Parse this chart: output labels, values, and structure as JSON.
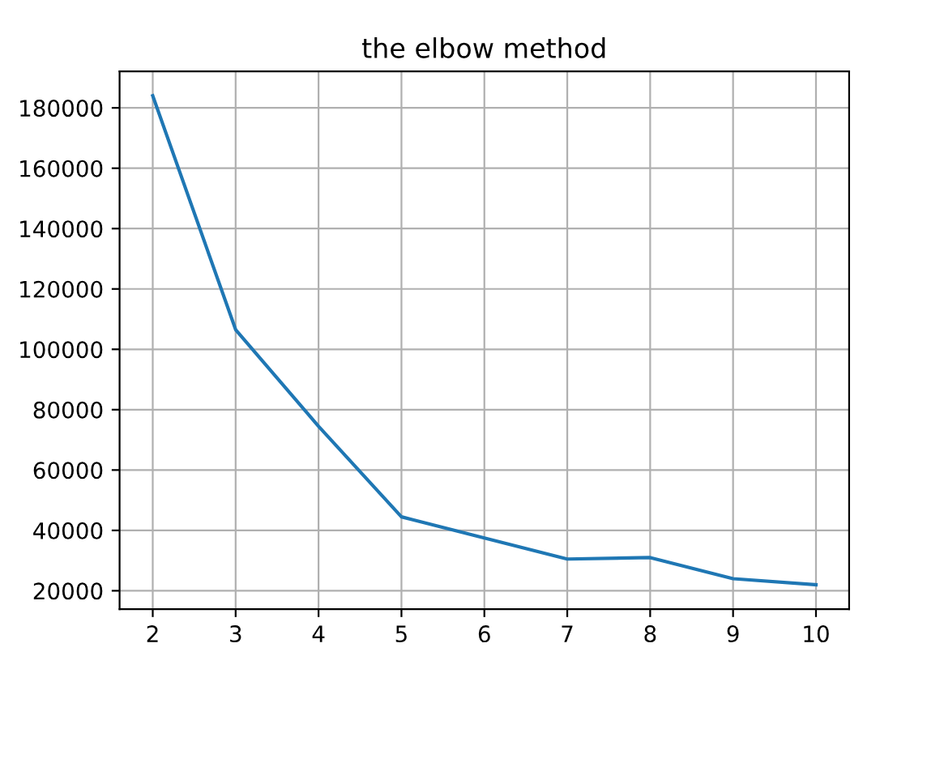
{
  "chart_data": {
    "type": "line",
    "title": "the elbow method",
    "x": [
      2,
      3,
      4,
      5,
      6,
      7,
      8,
      9,
      10
    ],
    "series": [
      {
        "color": "#1f77b4",
        "values": [
          184000,
          106500,
          74500,
          44500,
          37500,
          30500,
          31000,
          24000,
          22000
        ]
      }
    ],
    "xlim": [
      1.6,
      10.4
    ],
    "xticks": [
      2,
      3,
      4,
      5,
      6,
      7,
      8,
      9,
      10
    ],
    "ylim": [
      13900,
      192100
    ],
    "yticks": [
      20000,
      40000,
      60000,
      80000,
      100000,
      120000,
      140000,
      160000,
      180000
    ],
    "grid": true,
    "legend": false
  }
}
